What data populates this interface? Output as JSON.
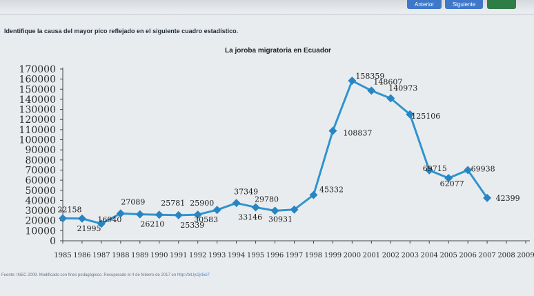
{
  "nav": {
    "prev_label": "Anterior",
    "next_label": "Siguiente",
    "submit_label": ""
  },
  "question": "Identifique la causa del mayor pico reflejado en el siguiente cuadro estadístico.",
  "chart_data": {
    "type": "line",
    "title": "La joroba migratoria en Ecuador",
    "xlabel": "",
    "ylabel": "",
    "ylim": [
      0,
      170000
    ],
    "yticks": [
      0,
      10000,
      20000,
      30000,
      40000,
      50000,
      60000,
      70000,
      80000,
      90000,
      100000,
      110000,
      120000,
      130000,
      140000,
      150000,
      160000,
      170000
    ],
    "x": [
      1985,
      1986,
      1987,
      1988,
      1989,
      1990,
      1991,
      1992,
      1993,
      1994,
      1995,
      1996,
      1997,
      1998,
      1999,
      2000,
      2001,
      2002,
      2003,
      2004,
      2005,
      2006,
      2007,
      2008,
      2009
    ],
    "values": [
      22158,
      21995,
      16940,
      27089,
      26210,
      25781,
      25339,
      25900,
      30583,
      37349,
      33146,
      29780,
      30931,
      45332,
      108837,
      158359,
      148607,
      140973,
      125106,
      69715,
      62077,
      69938,
      42399,
      null,
      null
    ],
    "grid": false,
    "color": "#2f94cf",
    "marker": "diamond"
  },
  "source": {
    "text": "Fuente: INEC 2009. Modificado con fines pedagógicos. Recuperado el 4 de febrero de 2017 en",
    "link": "http://bit.ly/2jr5oi7"
  }
}
